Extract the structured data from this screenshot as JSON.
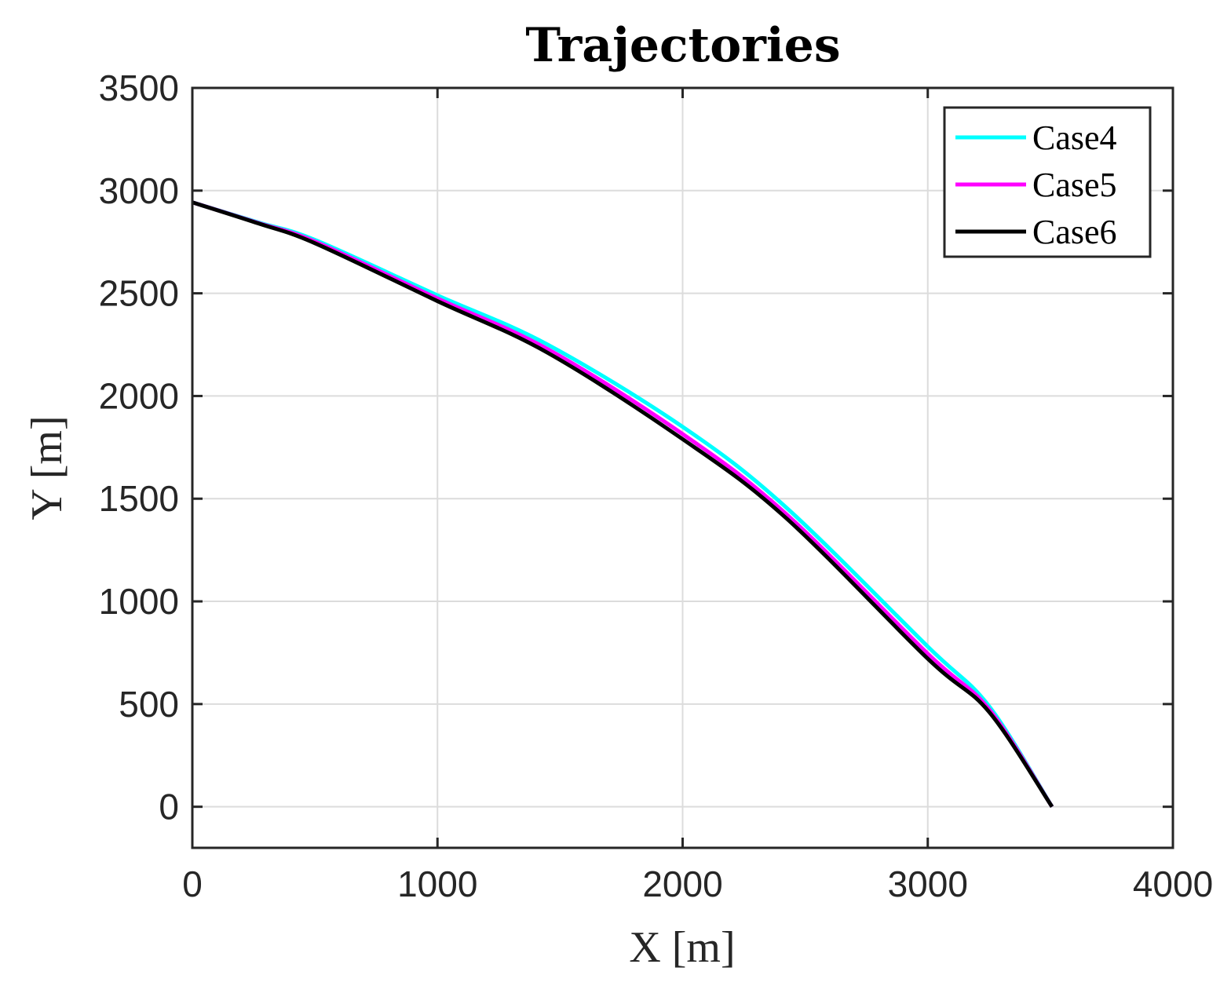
{
  "chart_data": {
    "type": "line",
    "title": "Trajectories",
    "xlabel": "X [m]",
    "ylabel": "Y [m]",
    "xlim": [
      0,
      4000
    ],
    "ylim": [
      -200,
      3500
    ],
    "xticks": [
      0,
      1000,
      2000,
      3000,
      4000
    ],
    "yticks": [
      0,
      500,
      1000,
      1500,
      2000,
      2500,
      3000,
      3500
    ],
    "xtick_labels": [
      "0",
      "1000",
      "2000",
      "3000",
      "4000"
    ],
    "ytick_labels": [
      "0",
      "500",
      "1000",
      "1500",
      "2000",
      "2500",
      "3000",
      "3500"
    ],
    "grid": true,
    "legend_position": "northeast",
    "series": [
      {
        "name": "Case4",
        "color": "#00FFFF",
        "x": [
          0,
          270,
          500,
          1000,
          1450,
          2000,
          2420,
          3000,
          3250,
          3507
        ],
        "y": [
          2943,
          2845,
          2760,
          2490,
          2250,
          1850,
          1460,
          780,
          490,
          0
        ]
      },
      {
        "name": "Case5",
        "color": "#FF00FF",
        "x": [
          0,
          270,
          500,
          1000,
          1450,
          2000,
          2420,
          3000,
          3250,
          3507
        ],
        "y": [
          2943,
          2842,
          2752,
          2475,
          2228,
          1815,
          1428,
          745,
          475,
          0
        ]
      },
      {
        "name": "Case6",
        "color": "#000000",
        "x": [
          0,
          270,
          500,
          1000,
          1450,
          2000,
          2420,
          3000,
          3250,
          3507
        ],
        "y": [
          2943,
          2840,
          2744,
          2462,
          2210,
          1790,
          1408,
          721,
          462,
          0
        ]
      }
    ]
  },
  "plot": {
    "title": "Trajectories",
    "xlabel": "X [m]",
    "ylabel": "Y [m]",
    "legend": [
      "Case4",
      "Case5",
      "Case6"
    ]
  }
}
